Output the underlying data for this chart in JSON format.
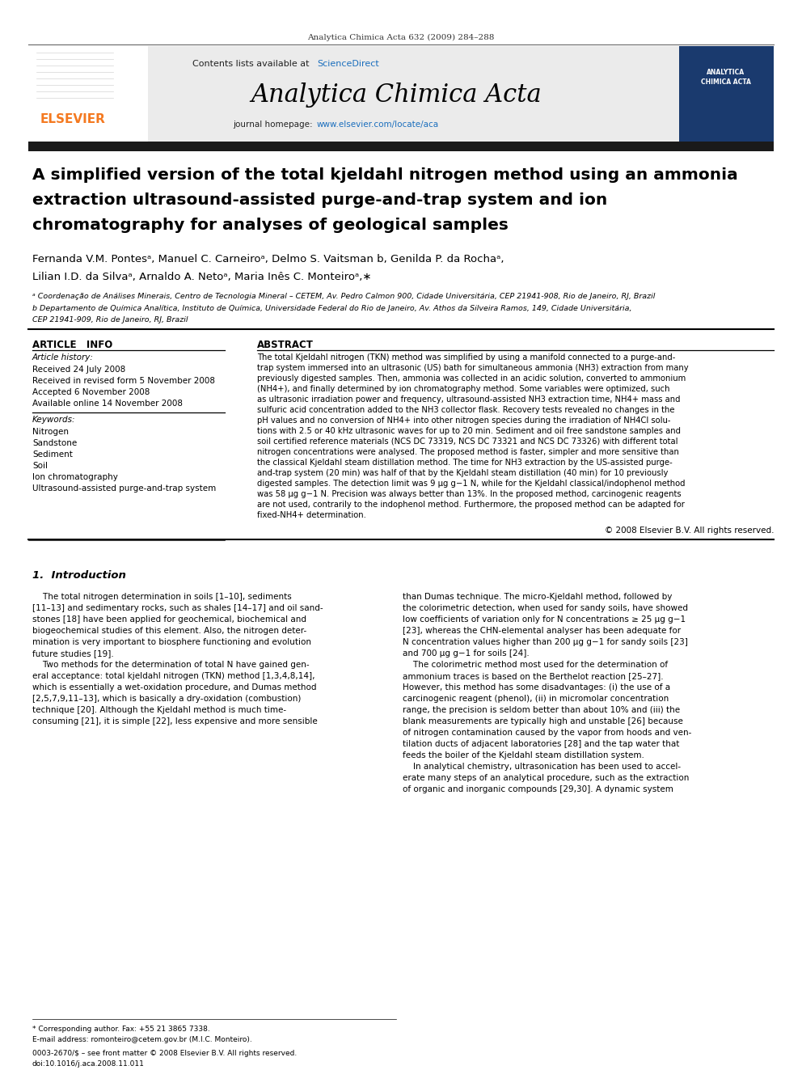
{
  "journal_ref": "Analytica Chimica Acta 632 (2009) 284–288",
  "journal_name": "Analytica Chimica Acta",
  "elsevier_text": "ELSEVIER",
  "title_line1": "A simplified version of the total kjeldahl nitrogen method using an ammonia",
  "title_line2": "extraction ultrasound-assisted purge-and-trap system and ion",
  "title_line3": "chromatography for analyses of geological samples",
  "author_line1": "Fernanda V.M. Pontesᵃ, Manuel C. Carneiroᵃ, Delmo S. Vaitsman b, Genilda P. da Rochaᵃ,",
  "author_line2": "Lilian I.D. da Silvaᵃ, Arnaldo A. Netoᵃ, Maria Inês C. Monteiroᵃ,∗",
  "affil_a": "ᵃ Coordenação de Análises Minerais, Centro de Tecnologia Mineral – CETEM, Av. Pedro Calmon 900, Cidade Universitária, CEP 21941-908, Rio de Janeiro, RJ, Brazil",
  "affil_b1": "b Departamento de Química Analítica, Instituto de Química, Universidade Federal do Rio de Janeiro, Av. Athos da Silveira Ramos, 149, Cidade Universitária,",
  "affil_b2": "CEP 21941-909, Rio de Janeiro, RJ, Brazil",
  "article_info_title": "ARTICLE   INFO",
  "article_history_title": "Article history:",
  "history_lines": [
    "Received 24 July 2008",
    "Received in revised form 5 November 2008",
    "Accepted 6 November 2008",
    "Available online 14 November 2008"
  ],
  "keywords_title": "Keywords:",
  "keywords": [
    "Nitrogen",
    "Sandstone",
    "Sediment",
    "Soil",
    "Ion chromatography",
    "Ultrasound-assisted purge-and-trap system"
  ],
  "abstract_title": "ABSTRACT",
  "abstract_lines": [
    "The total Kjeldahl nitrogen (TKN) method was simplified by using a manifold connected to a purge-and-",
    "trap system immersed into an ultrasonic (US) bath for simultaneous ammonia (NH3) extraction from many",
    "previously digested samples. Then, ammonia was collected in an acidic solution, converted to ammonium",
    "(NH4+), and finally determined by ion chromatography method. Some variables were optimized, such",
    "as ultrasonic irradiation power and frequency, ultrasound-assisted NH3 extraction time, NH4+ mass and",
    "sulfuric acid concentration added to the NH3 collector flask. Recovery tests revealed no changes in the",
    "pH values and no conversion of NH4+ into other nitrogen species during the irradiation of NH4Cl solu-",
    "tions with 2.5 or 40 kHz ultrasonic waves for up to 20 min. Sediment and oil free sandstone samples and",
    "soil certified reference materials (NCS DC 73319, NCS DC 73321 and NCS DC 73326) with different total",
    "nitrogen concentrations were analysed. The proposed method is faster, simpler and more sensitive than",
    "the classical Kjeldahl steam distillation method. The time for NH3 extraction by the US-assisted purge-",
    "and-trap system (20 min) was half of that by the Kjeldahl steam distillation (40 min) for 10 previously",
    "digested samples. The detection limit was 9 μg g−1 N, while for the Kjeldahl classical/indophenol method",
    "was 58 μg g−1 N. Precision was always better than 13%. In the proposed method, carcinogenic reagents",
    "are not used, contrarily to the indophenol method. Furthermore, the proposed method can be adapted for",
    "fixed-NH4+ determination."
  ],
  "copyright": "© 2008 Elsevier B.V. All rights reserved.",
  "section1_title": "1.  Introduction",
  "intro_col1_lines": [
    "    The total nitrogen determination in soils [1–10], sediments",
    "[11–13] and sedimentary rocks, such as shales [14–17] and oil sand-",
    "stones [18] have been applied for geochemical, biochemical and",
    "biogeochemical studies of this element. Also, the nitrogen deter-",
    "mination is very important to biosphere functioning and evolution",
    "future studies [19].",
    "    Two methods for the determination of total N have gained gen-",
    "eral acceptance: total kjeldahl nitrogen (TKN) method [1,3,4,8,14],",
    "which is essentially a wet-oxidation procedure, and Dumas method",
    "[2,5,7,9,11–13], which is basically a dry-oxidation (combustion)",
    "technique [20]. Although the Kjeldahl method is much time-",
    "consuming [21], it is simple [22], less expensive and more sensible"
  ],
  "intro_col2_lines": [
    "than Dumas technique. The micro-Kjeldahl method, followed by",
    "the colorimetric detection, when used for sandy soils, have showed",
    "low coefficients of variation only for N concentrations ≥ 25 μg g−1",
    "[23], whereas the CHN-elemental analyser has been adequate for",
    "N concentration values higher than 200 μg g−1 for sandy soils [23]",
    "and 700 μg g−1 for soils [24].",
    "    The colorimetric method most used for the determination of",
    "ammonium traces is based on the Berthelot reaction [25–27].",
    "However, this method has some disadvantages: (i) the use of a",
    "carcinogenic reagent (phenol), (ii) in micromolar concentration",
    "range, the precision is seldom better than about 10% and (iii) the",
    "blank measurements are typically high and unstable [26] because",
    "of nitrogen contamination caused by the vapor from hoods and ven-",
    "tilation ducts of adjacent laboratories [28] and the tap water that",
    "feeds the boiler of the Kjeldahl steam distillation system.",
    "    In analytical chemistry, ultrasonication has been used to accel-",
    "erate many steps of an analytical procedure, such as the extraction",
    "of organic and inorganic compounds [29,30]. A dynamic system"
  ],
  "footer1": "* Corresponding author. Fax: +55 21 3865 7338.",
  "footer2": "E-mail address: romonteiro@cetem.gov.br (M.I.C. Monteiro).",
  "footer3": "0003-2670/$ – see front matter © 2008 Elsevier B.V. All rights reserved.",
  "footer4": "doi:10.1016/j.aca.2008.11.011",
  "bg_color": "#ffffff",
  "header_bg": "#ebebeb",
  "dark_bar_color": "#1a1a1a",
  "elsevier_orange": "#f47920",
  "link_blue": "#1a6ebd",
  "text_color": "#000000"
}
